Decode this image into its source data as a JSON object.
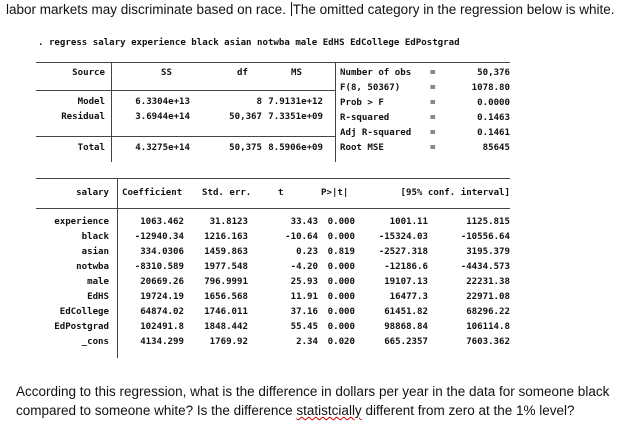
{
  "intro_text": {
    "before_caret": "labor markets may discriminate based on race. ",
    "after_caret": "The omitted category in the regression below is white."
  },
  "command": ". regress salary experience black asian notwba male EdHS EdCollege EdPostgrad",
  "anova": {
    "headers": {
      "source": "Source",
      "ss": "SS",
      "df": "df",
      "ms": "MS"
    },
    "rows": [
      {
        "source": "Model",
        "ss": "6.3304e+13",
        "df": "8",
        "ms": "7.9131e+12"
      },
      {
        "source": "Residual",
        "ss": "3.6944e+14",
        "df": "50,367",
        "ms": "7.3351e+09"
      }
    ],
    "total": {
      "source": "Total",
      "ss": "4.3275e+14",
      "df": "50,375",
      "ms": "8.5906e+09"
    }
  },
  "stats": [
    {
      "label": "Number of obs",
      "eq": "=",
      "value": "50,376"
    },
    {
      "label": "F(8, 50367)",
      "eq": "=",
      "value": "1078.80"
    },
    {
      "label": "Prob > F",
      "eq": "=",
      "value": "0.0000"
    },
    {
      "label": "R-squared",
      "eq": "=",
      "value": "0.1463"
    },
    {
      "label": "Adj R-squared",
      "eq": "=",
      "value": "0.1461"
    },
    {
      "label": "Root MSE",
      "eq": "=",
      "value": "85645"
    }
  ],
  "coef_table": {
    "headers": {
      "var": "salary",
      "coef": "Coefficient",
      "se": "Std. err.",
      "t": "t",
      "p": "P>|t|",
      "ci": "[95% conf. interval]"
    },
    "rows": [
      {
        "var": "experience",
        "coef": "1063.462",
        "se": "31.8123",
        "t": "33.43",
        "p": "0.000",
        "lo": "1001.11",
        "hi": "1125.815"
      },
      {
        "var": "black",
        "coef": "-12940.34",
        "se": "1216.163",
        "t": "-10.64",
        "p": "0.000",
        "lo": "-15324.03",
        "hi": "-10556.64"
      },
      {
        "var": "asian",
        "coef": "334.0306",
        "se": "1459.863",
        "t": "0.23",
        "p": "0.819",
        "lo": "-2527.318",
        "hi": "3195.379"
      },
      {
        "var": "notwba",
        "coef": "-8310.589",
        "se": "1977.548",
        "t": "-4.20",
        "p": "0.000",
        "lo": "-12186.6",
        "hi": "-4434.573"
      },
      {
        "var": "male",
        "coef": "20669.26",
        "se": "796.9991",
        "t": "25.93",
        "p": "0.000",
        "lo": "19107.13",
        "hi": "22231.38"
      },
      {
        "var": "EdHS",
        "coef": "19724.19",
        "se": "1656.568",
        "t": "11.91",
        "p": "0.000",
        "lo": "16477.3",
        "hi": "22971.08"
      },
      {
        "var": "EdCollege",
        "coef": "64874.02",
        "se": "1746.011",
        "t": "37.16",
        "p": "0.000",
        "lo": "61451.82",
        "hi": "68296.22"
      },
      {
        "var": "EdPostgrad",
        "coef": "102491.8",
        "se": "1848.442",
        "t": "55.45",
        "p": "0.000",
        "lo": "98868.84",
        "hi": "106114.8"
      },
      {
        "var": "_cons",
        "coef": "4134.299",
        "se": "1769.92",
        "t": "2.34",
        "p": "0.020",
        "lo": "665.2357",
        "hi": "7603.362"
      }
    ]
  },
  "question": {
    "part1": "According to this regression, what is the difference in dollars per year in the data for someone black compared to someone white? Is the difference ",
    "misspelled": "statistcially",
    "part2": " different from zero at the 1% level?"
  }
}
